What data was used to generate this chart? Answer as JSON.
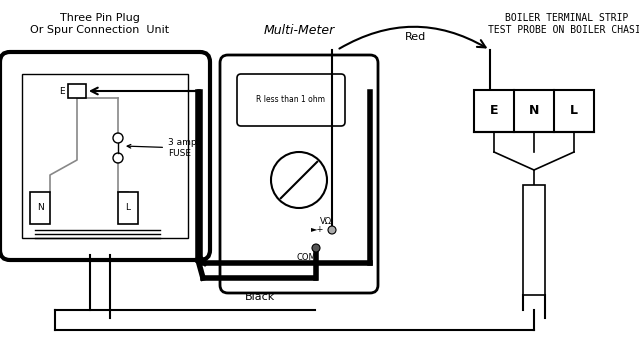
{
  "bg": "#ffffff",
  "lc": "#000000",
  "gray": "#888888",
  "title_plug1": "Three Pin Plug",
  "title_plug2": "Or Spur Connection  Unit",
  "title_meter": "Multi-Meter",
  "title_boiler1": "BOILER TERMINAL STRIP",
  "title_boiler2": "TEST PROBE ON BOILER CHASIS",
  "display_text": "R less than 1 ohm",
  "label_red": "Red",
  "label_black": "Black",
  "label_fuse": "3 amp\nFUSE",
  "label_com": "COM",
  "label_vohm": "VΩ",
  "label_e": "E",
  "label_n": "N",
  "label_l": "L",
  "figw": 6.39,
  "figh": 3.55,
  "dpi": 100
}
